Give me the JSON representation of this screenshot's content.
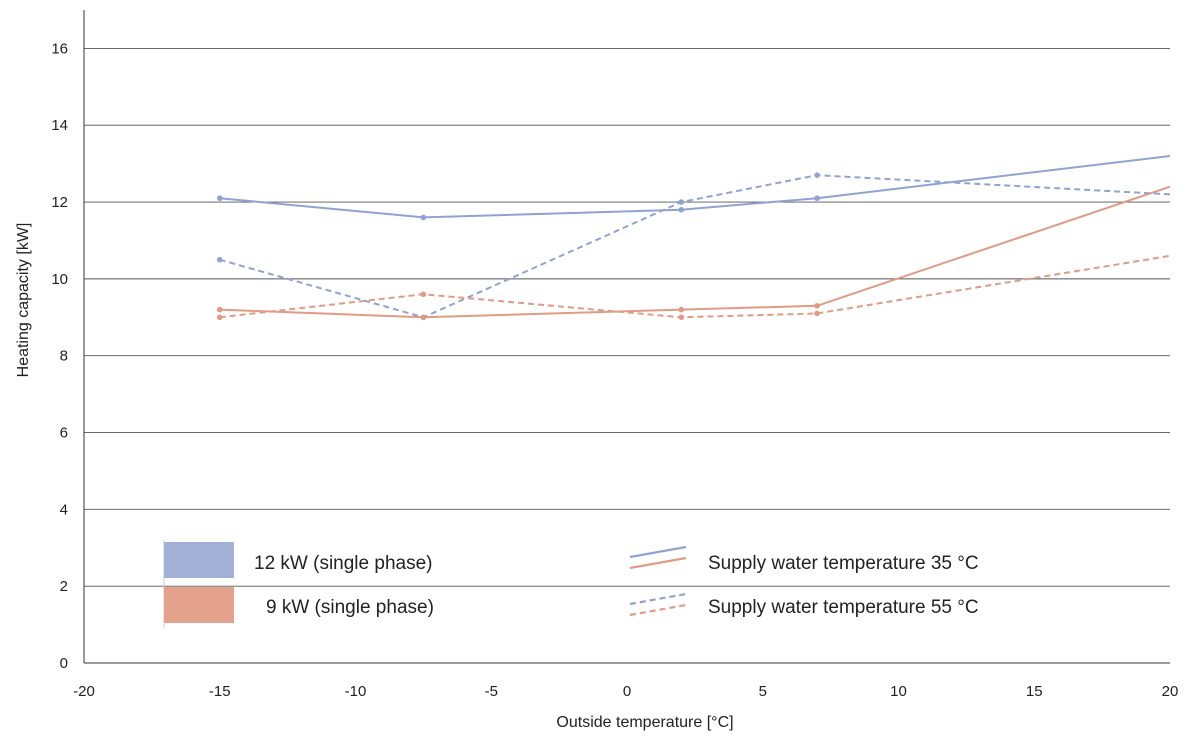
{
  "chart_data": {
    "type": "line",
    "xlabel": "Outside temperature [°C]",
    "ylabel": "Heating capacity [kW]",
    "xlim": [
      -20,
      20
    ],
    "ylim": [
      0,
      17
    ],
    "x_ticks": [
      -20,
      -15,
      -10,
      -5,
      0,
      5,
      10,
      15,
      20
    ],
    "y_ticks": [
      0,
      2,
      4,
      6,
      8,
      10,
      12,
      14,
      16
    ],
    "grid": "horizontal",
    "legend_placement": "bottom-left",
    "series": [
      {
        "model": "12 kW (single phase)",
        "supply_temp": "Supply water temperature 35 °C",
        "color": "#8fa3d2",
        "dashed": false,
        "points": [
          [
            -15,
            12.1
          ],
          [
            -7.5,
            11.6
          ],
          [
            2,
            11.8
          ],
          [
            7,
            12.1
          ],
          [
            20,
            13.2
          ]
        ]
      },
      {
        "model": "12 kW (single phase)",
        "supply_temp": "Supply water temperature 55 °C",
        "color": "#8fa3d2",
        "dashed": true,
        "points": [
          [
            -15,
            10.5
          ],
          [
            -7.5,
            9.0
          ],
          [
            2,
            12.0
          ],
          [
            7,
            12.7
          ],
          [
            20,
            12.2
          ]
        ]
      },
      {
        "model": "9 kW (single phase)",
        "supply_temp": "Supply water temperature 35 °C",
        "color": "#e09b85",
        "dashed": false,
        "points": [
          [
            -15,
            9.2
          ],
          [
            -7.5,
            9.0
          ],
          [
            2,
            9.2
          ],
          [
            7,
            9.3
          ],
          [
            20,
            12.4
          ]
        ]
      },
      {
        "model": "9 kW (single phase)",
        "supply_temp": "Supply water temperature 55 °C",
        "color": "#e09b85",
        "dashed": true,
        "points": [
          [
            -15,
            9.0
          ],
          [
            -7.5,
            9.6
          ],
          [
            2,
            9.0
          ],
          [
            7,
            9.1
          ],
          [
            20,
            10.6
          ]
        ]
      }
    ]
  },
  "legend": {
    "models": [
      {
        "label": "12 kW (single phase)",
        "color": "#a3b1d9"
      },
      {
        "label": "9 kW (single phase)",
        "color": "#e4a28d"
      }
    ],
    "line_styles": [
      {
        "label": "Supply water temperature 35 °C",
        "dashed": false
      },
      {
        "label": "Supply water temperature 55 °C",
        "dashed": true
      }
    ],
    "line_colors": [
      "#8fa3d2",
      "#e09b85"
    ]
  }
}
